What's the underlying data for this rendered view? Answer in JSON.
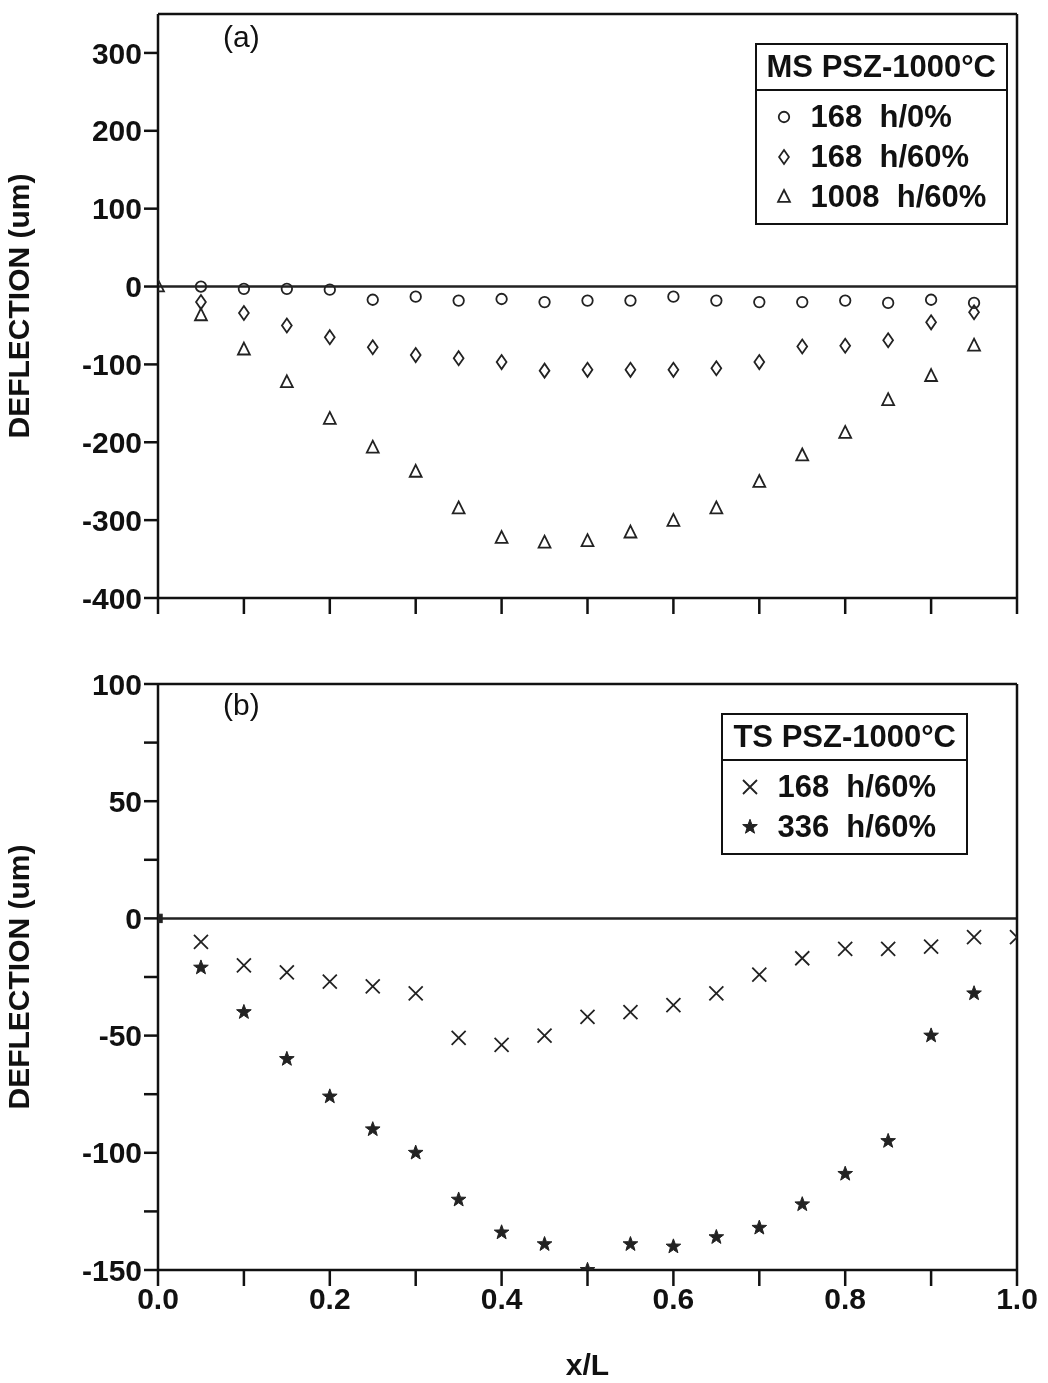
{
  "chart_data": [
    {
      "type": "scatter",
      "ylabel": "DEFLECTION  (um)",
      "annotations": [
        "(a)"
      ],
      "legend_title": "MS  PSZ-1000°C",
      "legend": "top right",
      "tick_labels": "y",
      "grid": false,
      "x": [
        0.05,
        0.1,
        0.15,
        0.2,
        0.25,
        0.3,
        0.35,
        0.4,
        0.45,
        0.5,
        0.55,
        0.6,
        0.65,
        0.7,
        0.75,
        0.8,
        0.85,
        0.9,
        0.95
      ],
      "xlim": [
        0,
        1
      ],
      "xticks": [
        0,
        0.1,
        0.2,
        0.3,
        0.4,
        0.5,
        0.6,
        0.7,
        0.8,
        0.9,
        1
      ],
      "ylim": [
        -400,
        350
      ],
      "yticks": [
        300,
        200,
        100,
        0,
        -100,
        -200,
        -300,
        -400
      ],
      "ref_lines": [
        {
          "axis": "y",
          "value": 0,
          "color": "#222222"
        }
      ],
      "series": [
        {
          "name": "168  h/0%",
          "color": "#222222",
          "marker": "circle",
          "values": [
            0,
            -3,
            -3,
            -4,
            -17,
            -13,
            -18,
            -16,
            -20,
            -18,
            -18,
            -13,
            -18,
            -20,
            -20,
            -18,
            -21,
            -17,
            -21
          ]
        },
        {
          "name": "168  h/60%",
          "color": "#222222",
          "marker": "diamond",
          "values": [
            -20,
            -34,
            -50,
            -65,
            -78,
            -88,
            -92,
            -97,
            -108,
            -107,
            -107,
            -107,
            -105,
            -97,
            -77,
            -76,
            -69,
            -46,
            -33
          ]
        },
        {
          "name": "1008  h/60%",
          "color": "#222222",
          "marker": "triangle",
          "x": [
            0,
            0.05,
            0.1,
            0.15,
            0.2,
            0.25,
            0.3,
            0.35,
            0.4,
            0.45,
            0.5,
            0.55,
            0.6,
            0.65,
            0.7,
            0.75,
            0.8,
            0.85,
            0.9,
            0.95
          ],
          "values": [
            0,
            -37,
            -81,
            -123,
            -170,
            -207,
            -238,
            -285,
            -323,
            -329,
            -327,
            -316,
            -301,
            -285,
            -251,
            -217,
            -188,
            -146,
            -115,
            -76
          ]
        }
      ]
    },
    {
      "type": "scatter",
      "ylabel": "DEFLECTION  (um)",
      "xlabel": "x/L",
      "annotations": [
        "(b)"
      ],
      "legend_title": "TS  PSZ-1000°C",
      "legend": "top right",
      "grid": false,
      "x": [
        0.05,
        0.1,
        0.15,
        0.2,
        0.25,
        0.3,
        0.35,
        0.4,
        0.45,
        0.5,
        0.55,
        0.6,
        0.65,
        0.7,
        0.75,
        0.8,
        0.85,
        0.9,
        0.95
      ],
      "xlim": [
        0,
        1
      ],
      "xticks": [
        {
          "value": 0,
          "label": "0.0"
        },
        {
          "value": 0.1,
          "label": null
        },
        {
          "value": 0.2,
          "label": "0.2"
        },
        {
          "value": 0.3,
          "label": null
        },
        {
          "value": 0.4,
          "label": "0.4"
        },
        {
          "value": 0.5,
          "label": null
        },
        {
          "value": 0.6,
          "label": "0.6"
        },
        {
          "value": 0.7,
          "label": null
        },
        {
          "value": 0.8,
          "label": "0.8"
        },
        {
          "value": 0.9,
          "label": null
        },
        {
          "value": 1,
          "label": "1.0"
        }
      ],
      "ylim": [
        -150,
        100
      ],
      "yticks": [
        100,
        {
          "value": 75,
          "label": null
        },
        50,
        {
          "value": 25,
          "label": null
        },
        0,
        {
          "value": -25,
          "label": null
        },
        -50,
        {
          "value": -75,
          "label": null
        },
        -100,
        {
          "value": -125,
          "label": null
        },
        -150
      ],
      "ref_lines": [
        {
          "axis": "y",
          "value": 0,
          "color": "#222222"
        }
      ],
      "series": [
        {
          "name": "168  h/60%",
          "color": "#222222",
          "marker": "cross",
          "x": [
            0.05,
            0.1,
            0.15,
            0.2,
            0.25,
            0.3,
            0.35,
            0.4,
            0.45,
            0.5,
            0.55,
            0.6,
            0.65,
            0.7,
            0.75,
            0.8,
            0.85,
            0.9,
            0.95,
            1
          ],
          "values": [
            -10,
            -20,
            -23,
            -27,
            -29,
            -32,
            -51,
            -54,
            -50,
            -42,
            -40,
            -37,
            -32,
            -24,
            -17,
            -13,
            -13,
            -12,
            -8,
            -8
          ]
        },
        {
          "name": "336  h/60%",
          "color": "#222222",
          "marker": "star",
          "values": [
            -21,
            -40,
            -60,
            -76,
            -90,
            -100,
            -120,
            -134,
            -139,
            -150,
            -139,
            -140,
            -136,
            -132,
            -122,
            -109,
            -95,
            -50,
            -32
          ]
        },
        {
          "color": "#222222",
          "marker": "square",
          "x": [
            0
          ],
          "values": [
            0
          ]
        }
      ]
    }
  ]
}
